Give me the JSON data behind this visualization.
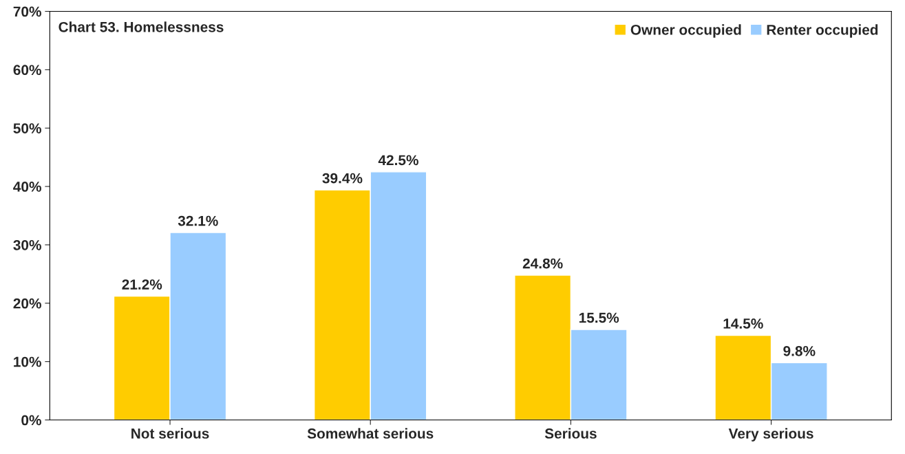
{
  "chart_data": {
    "type": "bar",
    "title": "Chart 53. Homelessness",
    "categories": [
      "Not serious",
      "Somewhat serious",
      "Serious",
      "Very serious"
    ],
    "series": [
      {
        "name": "Owner occupied",
        "color": "#ffcc00",
        "values": [
          21.2,
          39.4,
          24.8,
          14.5
        ],
        "value_labels": [
          "21.2%",
          "39.4%",
          "24.8%",
          "14.5%"
        ]
      },
      {
        "name": "Renter occupied",
        "color": "#99ccff",
        "values": [
          32.1,
          42.5,
          15.5,
          9.8
        ],
        "value_labels": [
          "32.1%",
          "42.5%",
          "15.5%",
          "9.8%"
        ]
      }
    ],
    "ylim": [
      0,
      70
    ],
    "yticks": [
      {
        "value": 0,
        "label": "0%"
      },
      {
        "value": 10,
        "label": "10%"
      },
      {
        "value": 20,
        "label": "20%"
      },
      {
        "value": 30,
        "label": "30%"
      },
      {
        "value": 40,
        "label": "40%"
      },
      {
        "value": 50,
        "label": "50%"
      },
      {
        "value": 60,
        "label": "60%"
      },
      {
        "value": 70,
        "label": "70%"
      }
    ],
    "grid": false,
    "legend": "top right"
  }
}
